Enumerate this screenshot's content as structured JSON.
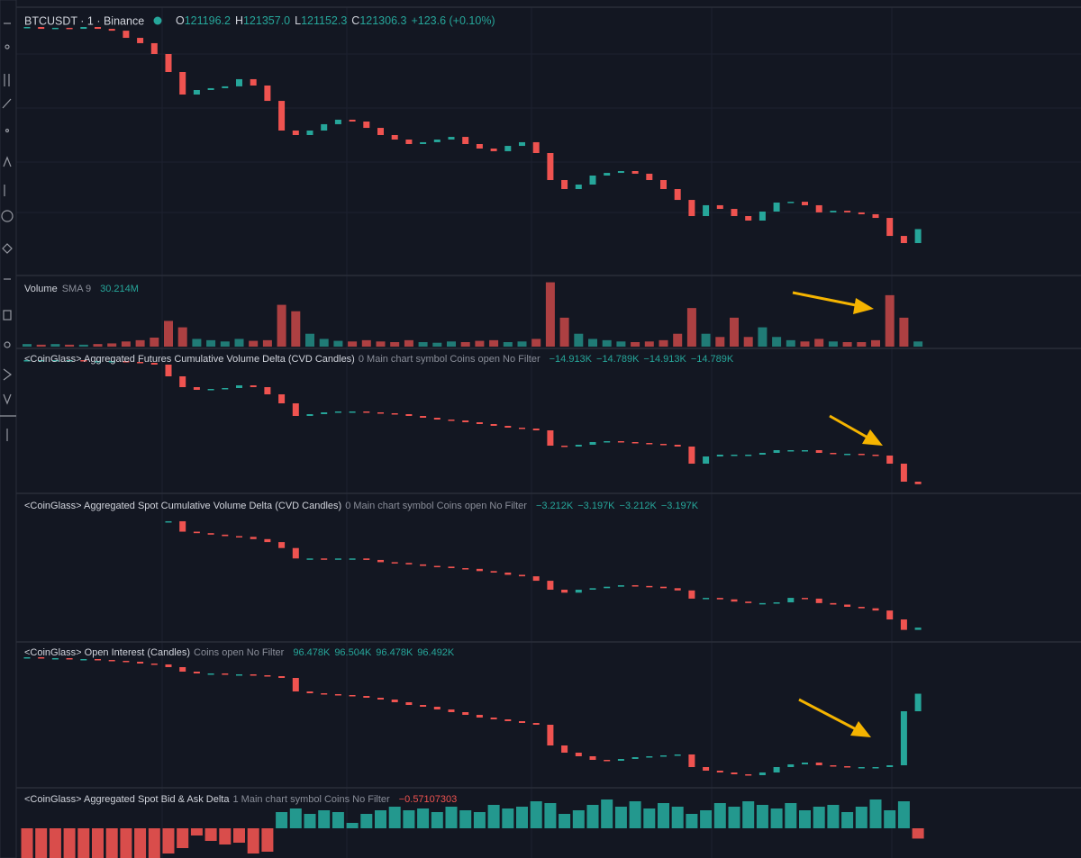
{
  "header": {
    "symbol": "BTCUSDT · 1 · Binance",
    "ohlc": [
      {
        "key": "O",
        "value": "121196.2"
      },
      {
        "key": "H",
        "value": "121357.0"
      },
      {
        "key": "L",
        "value": "121152.3"
      },
      {
        "key": "C",
        "value": "121306.3"
      }
    ],
    "change": "+123.6 (+0.10%)"
  },
  "panes": [
    {
      "type": "candles",
      "ylim": [
        121106,
        122360
      ],
      "values": [
        122294,
        122285,
        122290,
        122285,
        122294,
        122285,
        122276,
        122241,
        122215,
        122162,
        122074,
        121964,
        121986,
        121995,
        122004,
        122039,
        122008,
        121933,
        121788,
        121766,
        121788,
        121819,
        121841,
        121832,
        121801,
        121766,
        121744,
        121722,
        121731,
        121744,
        121757,
        121722,
        121700,
        121687,
        121713,
        121731,
        121678,
        121546,
        121502,
        121524,
        121568,
        121581,
        121590,
        121577,
        121546,
        121502,
        121449,
        121370,
        121423,
        121405,
        121370,
        121348,
        121392,
        121436,
        121440,
        121423,
        121388,
        121396,
        121388,
        121379,
        121361,
        121273,
        121238,
        121306.3
      ]
    },
    {
      "type": "volume",
      "title": "Volume",
      "study": "SMA 9",
      "readings": [
        "30.214M"
      ],
      "ylim": [
        0,
        105
      ],
      "values": [
        4,
        3,
        4,
        3,
        3,
        4,
        5,
        8,
        10,
        14,
        40,
        30,
        12,
        10,
        8,
        12,
        9,
        10,
        65,
        55,
        20,
        12,
        9,
        8,
        10,
        8,
        7,
        10,
        7,
        6,
        8,
        7,
        9,
        10,
        7,
        8,
        12,
        100,
        45,
        20,
        12,
        10,
        8,
        7,
        8,
        10,
        20,
        60,
        20,
        15,
        45,
        15,
        30,
        15,
        10,
        8,
        12,
        8,
        7,
        7,
        10,
        80,
        45,
        8
      ]
    },
    {
      "type": "candles",
      "title": "<CoinGlass> Aggregated Futures Cumulative Volume Delta (CVD Candles)",
      "study": "0 Main chart symbol Coins open No Filter",
      "readings": [
        "−14.913K",
        "−14.789K",
        "−14.913K",
        "−14.789K"
      ],
      "ylim": [
        -14.83,
        -14.06
      ],
      "values": [
        -14.1,
        -14.1,
        -14.1,
        -14.1,
        -14.105,
        -14.105,
        -14.105,
        -14.11,
        -14.115,
        -14.125,
        -14.19,
        -14.25,
        -14.265,
        -14.26,
        -14.255,
        -14.24,
        -14.25,
        -14.29,
        -14.34,
        -14.41,
        -14.4,
        -14.39,
        -14.385,
        -14.385,
        -14.39,
        -14.395,
        -14.4,
        -14.41,
        -14.42,
        -14.43,
        -14.435,
        -14.445,
        -14.455,
        -14.465,
        -14.475,
        -14.48,
        -14.49,
        -14.575,
        -14.58,
        -14.57,
        -14.555,
        -14.55,
        -14.555,
        -14.56,
        -14.565,
        -14.57,
        -14.58,
        -14.675,
        -14.635,
        -14.625,
        -14.625,
        -14.625,
        -14.615,
        -14.6,
        -14.6,
        -14.6,
        -14.615,
        -14.62,
        -14.62,
        -14.625,
        -14.63,
        -14.675,
        -14.775,
        -14.789
      ]
    },
    {
      "type": "candles",
      "title": "<CoinGlass> Aggregated Spot Cumulative Volume Delta (CVD Candles)",
      "study": "0 Main chart symbol Coins open No Filter",
      "readings": [
        "−3.212K",
        "−3.197K",
        "−3.212K",
        "−3.197K"
      ],
      "ylim": [
        -3.215,
        -3.025
      ],
      "values": [
        null,
        null,
        null,
        null,
        null,
        null,
        null,
        null,
        null,
        null,
        -3.054,
        -3.068,
        -3.07,
        -3.072,
        -3.074,
        -3.075,
        -3.078,
        -3.082,
        -3.09,
        -3.104,
        -3.104,
        -3.105,
        -3.104,
        -3.104,
        -3.106,
        -3.109,
        -3.11,
        -3.112,
        -3.114,
        -3.115,
        -3.117,
        -3.118,
        -3.121,
        -3.123,
        -3.126,
        -3.128,
        -3.134,
        -3.146,
        -3.15,
        -3.146,
        -3.144,
        -3.142,
        -3.14,
        -3.141,
        -3.142,
        -3.144,
        -3.147,
        -3.158,
        -3.157,
        -3.159,
        -3.162,
        -3.164,
        -3.164,
        -3.163,
        -3.157,
        -3.158,
        -3.164,
        -3.166,
        -3.169,
        -3.171,
        -3.174,
        -3.186,
        -3.2,
        -3.197
      ]
    },
    {
      "type": "candles",
      "title": "<CoinGlass> Open Interest (Candles)",
      "study": "Coins open No Filter",
      "readings": [
        "96.478K",
        "96.504K",
        "96.478K",
        "96.492K"
      ],
      "ylim": [
        94.97,
        97.325
      ],
      "values": [
        97.1,
        97.085,
        97.085,
        97.07,
        97.07,
        97.055,
        97.04,
        97.025,
        96.995,
        96.98,
        96.935,
        96.86,
        96.83,
        96.83,
        96.815,
        96.815,
        96.8,
        96.785,
        96.755,
        96.53,
        96.5,
        96.485,
        96.47,
        96.455,
        96.425,
        96.395,
        96.35,
        96.305,
        96.275,
        96.23,
        96.185,
        96.14,
        96.095,
        96.065,
        96.035,
        96.005,
        95.975,
        95.63,
        95.51,
        95.45,
        95.39,
        95.375,
        95.405,
        95.435,
        95.45,
        95.465,
        95.48,
        95.27,
        95.21,
        95.18,
        95.15,
        95.135,
        95.18,
        95.27,
        95.315,
        95.345,
        95.3,
        95.285,
        95.27,
        95.27,
        95.27,
        95.3,
        96.2,
        96.492
      ]
    },
    {
      "type": "histogram",
      "title": "<CoinGlass> Aggregated Spot Bid & Ask Delta",
      "study": "1 Main chart symbol Coins No Filter",
      "readings": [
        "−0.57107303"
      ],
      "ylim": [
        -1.65,
        2.1
      ],
      "values": [
        -1.65,
        -1.65,
        -1.65,
        -1.65,
        -1.65,
        -1.65,
        -1.65,
        -1.65,
        -1.65,
        -1.65,
        -1.4,
        -1.1,
        -0.4,
        -0.7,
        -0.9,
        -0.8,
        -1.4,
        -1.3,
        0.9,
        1.1,
        0.8,
        1.0,
        0.9,
        0.3,
        0.8,
        1.0,
        1.2,
        1.0,
        1.1,
        0.9,
        1.2,
        1.0,
        0.9,
        1.3,
        1.1,
        1.2,
        1.5,
        1.4,
        0.8,
        1.0,
        1.3,
        1.6,
        1.2,
        1.5,
        1.1,
        1.4,
        1.2,
        0.8,
        1.0,
        1.4,
        1.2,
        1.5,
        1.3,
        1.1,
        1.4,
        1.0,
        1.2,
        1.3,
        0.9,
        1.2,
        1.6,
        1.0,
        1.5,
        -0.57107303
      ]
    }
  ]
}
